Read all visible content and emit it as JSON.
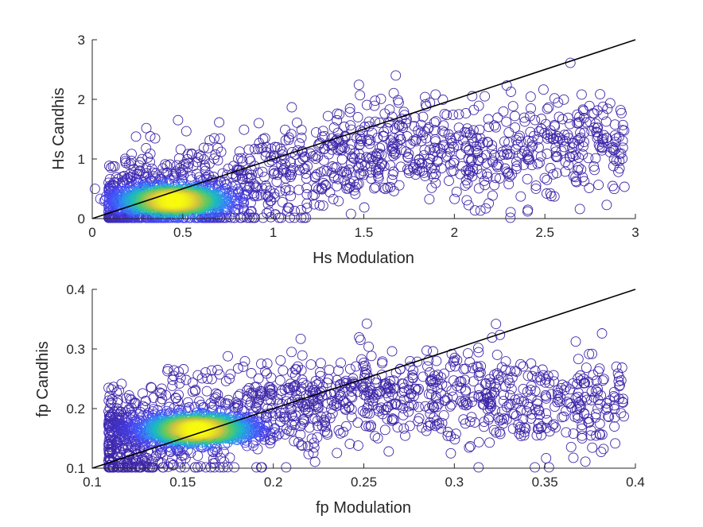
{
  "chart_data": [
    {
      "type": "scatter",
      "xlabel": "Hs Modulation",
      "ylabel": "Hs Candhis",
      "xlim": [
        0,
        3
      ],
      "ylim": [
        0,
        3
      ],
      "xticks": [
        "0",
        "0.5",
        "1",
        "1.5",
        "2",
        "2.5",
        "3"
      ],
      "yticks": [
        "0",
        "1",
        "2",
        "3"
      ],
      "reference_line": {
        "x": [
          0,
          3
        ],
        "y": [
          0,
          3
        ],
        "color": "#000000"
      },
      "marker": "open-circle",
      "color_encoding": "point density (parula: blue low, yellow high)",
      "colormap": [
        "#3E26A8",
        "#4646F8",
        "#2F8FF0",
        "#1BBBBF",
        "#5EC962",
        "#CFC240",
        "#F9FB0E"
      ],
      "density_core": {
        "x": 0.45,
        "y": 0.3
      },
      "series": [
        {
          "x": [
            0.1,
            0.2,
            0.3,
            0.4,
            0.5,
            0.6,
            0.7,
            0.8,
            0.9,
            1.0,
            1.2,
            1.4,
            1.6,
            1.8,
            2.0,
            2.2,
            2.5,
            2.8
          ],
          "y": [
            0.15,
            0.25,
            0.3,
            0.33,
            0.35,
            0.4,
            0.45,
            0.5,
            0.6,
            0.7,
            0.85,
            1.0,
            1.1,
            1.2,
            1.1,
            1.0,
            1.2,
            1.3
          ]
        }
      ]
    },
    {
      "type": "scatter",
      "xlabel": "fp Modulation",
      "ylabel": "fp Candhis",
      "xlim": [
        0.1,
        0.4
      ],
      "ylim": [
        0.1,
        0.4
      ],
      "xticks": [
        "0.1",
        "0.15",
        "0.2",
        "0.25",
        "0.3",
        "0.35",
        "0.4"
      ],
      "yticks": [
        "0.1",
        "0.2",
        "0.3",
        "0.4"
      ],
      "reference_line": {
        "x": [
          0.1,
          0.4
        ],
        "y": [
          0.1,
          0.4
        ],
        "color": "#000000"
      },
      "marker": "open-circle",
      "color_encoding": "point density (parula: blue low, yellow high)",
      "colormap": [
        "#3E26A8",
        "#4646F8",
        "#2F8FF0",
        "#1BBBBF",
        "#5EC962",
        "#CFC240",
        "#F9FB0E"
      ],
      "density_core": {
        "x": 0.158,
        "y": 0.165
      },
      "series": [
        {
          "x": [
            0.13,
            0.14,
            0.15,
            0.16,
            0.17,
            0.18,
            0.2,
            0.22,
            0.24,
            0.26,
            0.28,
            0.3,
            0.32,
            0.34
          ],
          "y": [
            0.15,
            0.16,
            0.165,
            0.17,
            0.18,
            0.19,
            0.2,
            0.21,
            0.22,
            0.22,
            0.23,
            0.22,
            0.22,
            0.21
          ]
        }
      ]
    }
  ]
}
